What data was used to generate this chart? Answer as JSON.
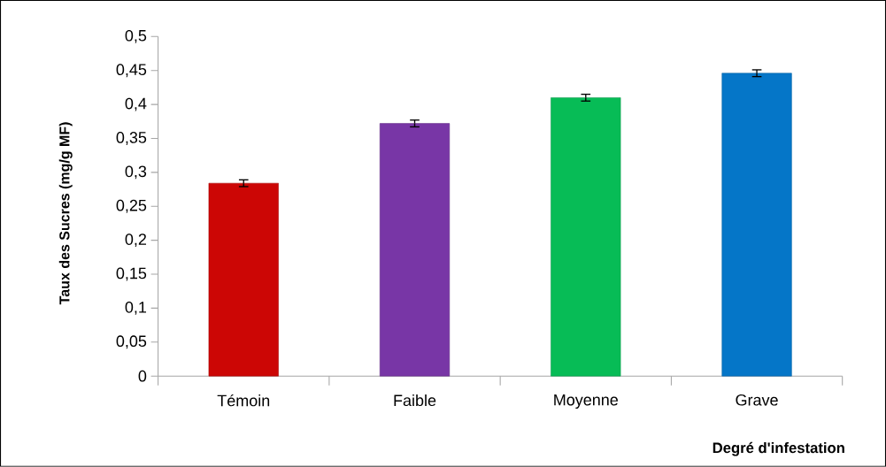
{
  "chart_data": {
    "type": "bar",
    "xlabel": "Degré d'infestation",
    "ylabel": "Taux des Sucres (mg/g MF)",
    "categories": [
      "Témoin",
      "Faible",
      "Moyenne",
      "Grave"
    ],
    "values": [
      0.284,
      0.372,
      0.41,
      0.446
    ],
    "errors": [
      0.005,
      0.005,
      0.005,
      0.005
    ],
    "colors": [
      "#cc0605",
      "#7836a6",
      "#07bc56",
      "#0576c8"
    ],
    "ylim": [
      0,
      0.5
    ],
    "yticks": [
      {
        "value": 0,
        "label": "0"
      },
      {
        "value": 0.05,
        "label": "0,05"
      },
      {
        "value": 0.1,
        "label": "0,1"
      },
      {
        "value": 0.15,
        "label": "0,15"
      },
      {
        "value": 0.2,
        "label": "0,2"
      },
      {
        "value": 0.25,
        "label": "0,25"
      },
      {
        "value": 0.3,
        "label": "0,3"
      },
      {
        "value": 0.35,
        "label": "0,35"
      },
      {
        "value": 0.4,
        "label": "0,4"
      },
      {
        "value": 0.45,
        "label": "0,45"
      },
      {
        "value": 0.5,
        "label": "0,5"
      }
    ],
    "grid": false
  }
}
